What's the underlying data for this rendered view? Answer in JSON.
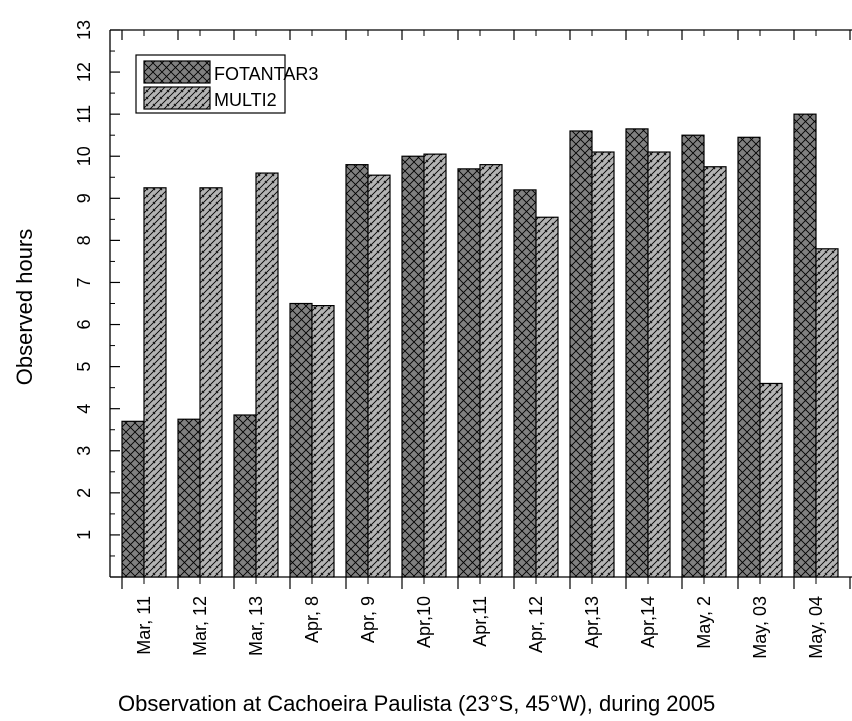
{
  "chart_data": {
    "type": "bar",
    "xlabel": "Observation at Cachoeira Paulista (23°S, 45°W), during 2005",
    "ylabel": "Observed hours",
    "ylim": [
      0,
      13
    ],
    "yticks": [
      1,
      2,
      3,
      4,
      5,
      6,
      7,
      8,
      9,
      10,
      11,
      12,
      13
    ],
    "grid": false,
    "legend_position": "top-left",
    "categories": [
      "Mar, 11",
      "Mar, 12",
      "Mar, 13",
      "Apr, 8",
      "Apr, 9",
      "Apr,10",
      "Apr,11",
      "Apr, 12",
      "Apr,13",
      "Apr,14",
      "May, 2",
      "May, 03",
      "May, 04"
    ],
    "series": [
      {
        "name": "FOTANTAR3",
        "fill": "#808080",
        "pattern": "crosshatch",
        "values": [
          3.7,
          3.75,
          3.85,
          6.5,
          9.8,
          10.0,
          9.7,
          9.2,
          10.6,
          10.65,
          10.5,
          10.45,
          11.0
        ]
      },
      {
        "name": "MULTI2",
        "fill": "#b4b4b4",
        "pattern": "diagonal",
        "values": [
          9.25,
          9.25,
          9.6,
          6.45,
          9.55,
          10.05,
          9.8,
          8.55,
          10.1,
          10.1,
          9.75,
          4.6,
          7.8
        ]
      }
    ]
  }
}
